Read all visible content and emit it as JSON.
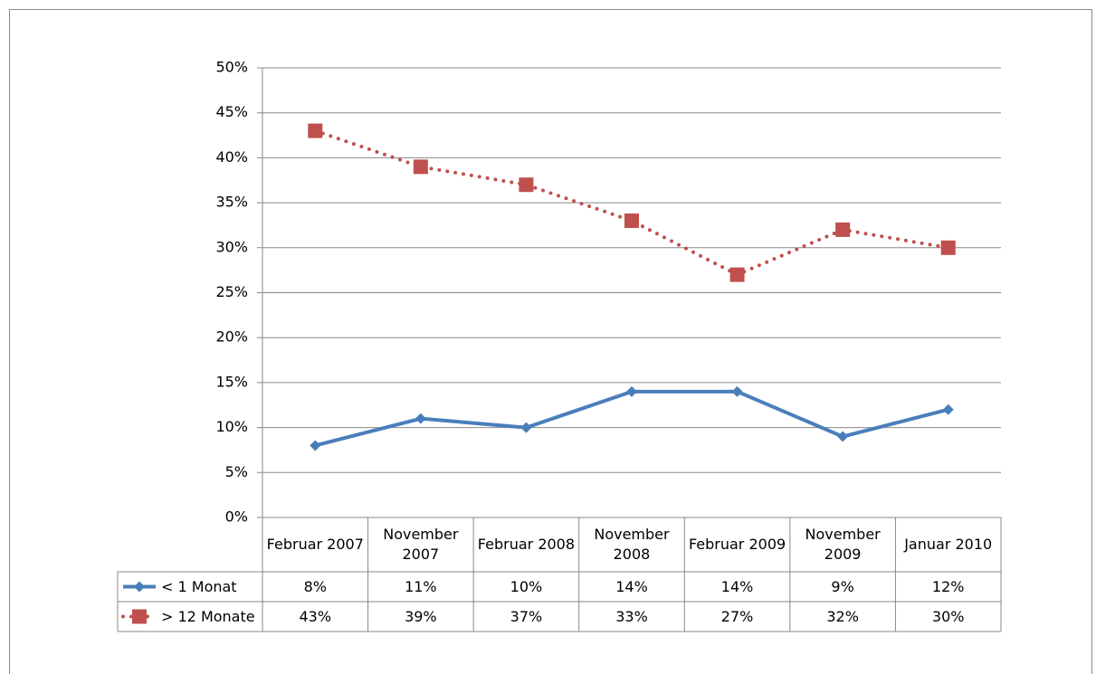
{
  "chart_data": {
    "type": "line",
    "categories": [
      "Februar 2007",
      "November 2007",
      "Februar 2008",
      "November 2008",
      "Februar 2009",
      "November 2009",
      "Januar 2010"
    ],
    "series": [
      {
        "name": "< 1 Monat",
        "color": "#4a7ebb",
        "style": "solid",
        "marker": "diamond",
        "values": [
          8,
          11,
          10,
          14,
          14,
          9,
          12
        ],
        "value_labels": [
          "8%",
          "11%",
          "10%",
          "14%",
          "14%",
          "9%",
          "12%"
        ]
      },
      {
        "name": "> 12 Monate",
        "color": "#c0504d",
        "style": "dotted",
        "marker": "square",
        "values": [
          43,
          39,
          37,
          33,
          27,
          32,
          30
        ],
        "value_labels": [
          "43%",
          "39%",
          "37%",
          "33%",
          "27%",
          "32%",
          "30%"
        ]
      }
    ],
    "ylim": [
      0,
      50
    ],
    "yticks": [
      {
        "value": 0,
        "label": "0%"
      },
      {
        "value": 5,
        "label": "5%"
      },
      {
        "value": 10,
        "label": "10%"
      },
      {
        "value": 15,
        "label": "15%"
      },
      {
        "value": 20,
        "label": "20%"
      },
      {
        "value": 25,
        "label": "25%"
      },
      {
        "value": 30,
        "label": "30%"
      },
      {
        "value": 35,
        "label": "35%"
      },
      {
        "value": 40,
        "label": "40%"
      },
      {
        "value": 45,
        "label": "45%"
      },
      {
        "value": 50,
        "label": "50%"
      }
    ],
    "grid": true
  }
}
